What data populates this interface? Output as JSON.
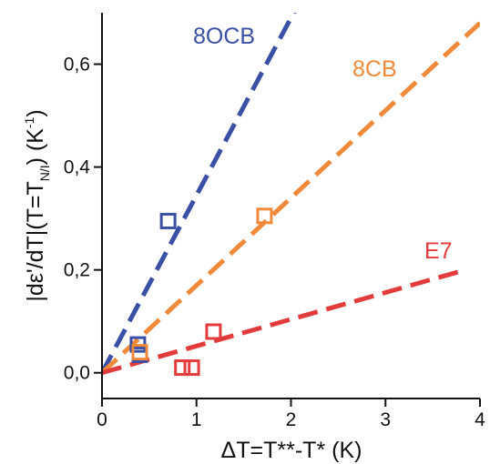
{
  "chart_data": {
    "type": "scatter",
    "title": "",
    "xlabel": "ΔT=T**-T* (K)",
    "ylabel": "|dε'/dT|(T=T_N/I) (K⁻¹)",
    "ylabel_parts": {
      "main": "|dε'/dT|(T=T",
      "sub": "N/I",
      "close": ") (K",
      "sup": "-1",
      "end": ")"
    },
    "xlim": [
      0,
      4
    ],
    "ylim": [
      -0.05,
      0.7
    ],
    "xticks": [
      0,
      1,
      2,
      3,
      4
    ],
    "xtick_labels": [
      "0",
      "1",
      "2",
      "3",
      "4"
    ],
    "yticks": [
      0.0,
      0.2,
      0.4,
      0.6
    ],
    "ytick_labels": [
      "0,0",
      "0,2",
      "0,4",
      "0,6"
    ],
    "grid": false,
    "series": [
      {
        "name": "8OCB",
        "color": "#3a4fa6",
        "marker": "square-open",
        "points": [
          [
            0.38,
            0.055
          ],
          [
            0.4,
            0.035
          ],
          [
            0.7,
            0.295
          ]
        ],
        "fit_line": {
          "style": "dashed",
          "slope": 0.345,
          "x": [
            0,
            2.05
          ]
        }
      },
      {
        "name": "8CB",
        "color": "#f08a3a",
        "marker": "square-open",
        "points": [
          [
            0.4,
            0.04
          ],
          [
            1.72,
            0.305
          ]
        ],
        "fit_line": {
          "style": "dashed",
          "slope": 0.17,
          "x": [
            0,
            4
          ]
        }
      },
      {
        "name": "E7",
        "color": "#e33b3b",
        "marker": "square-open",
        "points": [
          [
            0.85,
            0.01
          ],
          [
            0.95,
            0.01
          ],
          [
            1.18,
            0.08
          ]
        ],
        "fit_line": {
          "style": "dashed",
          "slope": 0.052,
          "x": [
            0,
            3.85
          ]
        }
      }
    ]
  }
}
